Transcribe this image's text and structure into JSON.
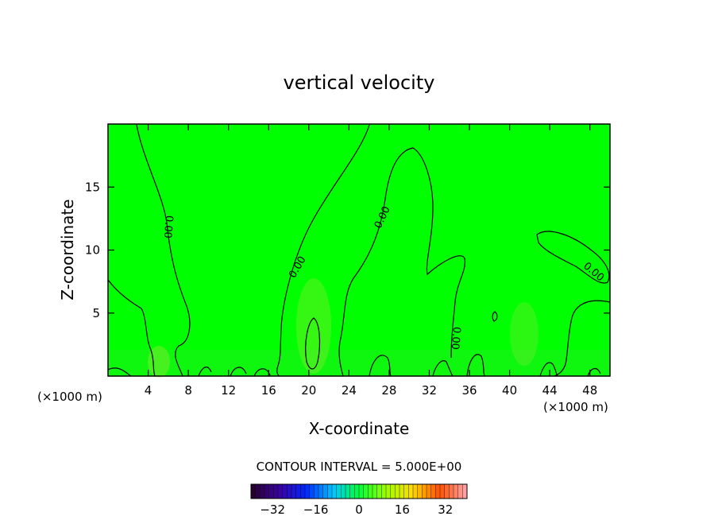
{
  "chart_data": {
    "type": "heatmap",
    "title": "vertical velocity",
    "xlabel": "X-coordinate",
    "ylabel": "Z-coordinate",
    "x_unit_left": "(×1000 m)",
    "x_unit_right": "(×1000 m)",
    "xlim": [
      0,
      50
    ],
    "ylim": [
      0,
      20
    ],
    "xticks": [
      4,
      8,
      12,
      16,
      20,
      24,
      28,
      32,
      36,
      40,
      44,
      48
    ],
    "yticks": [
      5,
      10,
      15
    ],
    "contour_interval_text": "CONTOUR INTERVAL = 5.000E+00",
    "contour_labels": [
      "0.00",
      "0.00",
      "0.00",
      "0.00",
      "0.00",
      "0.00"
    ],
    "colorbar": {
      "range": [
        -40,
        40
      ],
      "ticks": [
        -32,
        -16,
        0,
        16,
        32
      ],
      "tick_labels": [
        "−32",
        "−16",
        "0",
        "16",
        "32"
      ]
    },
    "background_color": "#00ff00"
  }
}
